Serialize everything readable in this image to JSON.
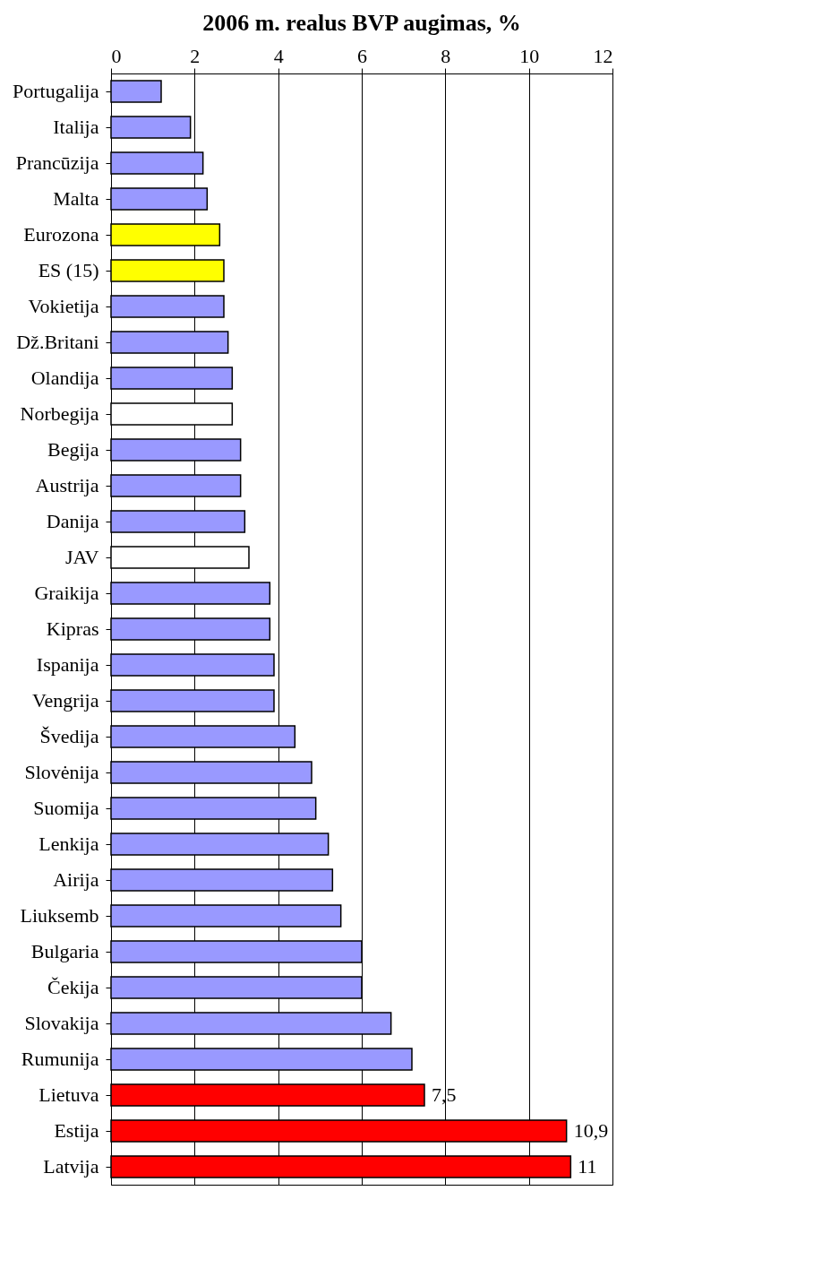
{
  "chart_data": {
    "type": "bar",
    "orientation": "horizontal",
    "title": "2006 m. realus BVP augimas, %",
    "categories": [
      "Portugalija",
      "Italija",
      "Prancūzija",
      "Malta",
      "Eurozona",
      "ES (15)",
      "Vokietija",
      "Dž.Britani",
      "Olandija",
      "Norbegija",
      "Begija",
      "Austrija",
      "Danija",
      "JAV",
      "Graikija",
      "Kipras",
      "Ispanija",
      "Vengrija",
      "Švedija",
      "Slovėnija",
      "Suomija",
      "Lenkija",
      "Airija",
      "Liuksemb",
      "Bulgaria",
      "Čekija",
      "Slovakija",
      "Rumunija",
      "Lietuva",
      "Estija",
      "Latvija"
    ],
    "values": [
      1.2,
      1.9,
      2.2,
      2.3,
      2.6,
      2.7,
      2.7,
      2.8,
      2.9,
      2.9,
      3.1,
      3.1,
      3.2,
      3.3,
      3.8,
      3.8,
      3.9,
      3.9,
      4.4,
      4.8,
      4.9,
      5.2,
      5.3,
      5.5,
      6.0,
      6.0,
      6.7,
      7.2,
      7.5,
      10.9,
      11.0
    ],
    "colors": [
      "#9999ff",
      "#9999ff",
      "#9999ff",
      "#9999ff",
      "#ffff00",
      "#ffff00",
      "#9999ff",
      "#9999ff",
      "#9999ff",
      "#ffffff",
      "#9999ff",
      "#9999ff",
      "#9999ff",
      "#ffffff",
      "#9999ff",
      "#9999ff",
      "#9999ff",
      "#9999ff",
      "#9999ff",
      "#9999ff",
      "#9999ff",
      "#9999ff",
      "#9999ff",
      "#9999ff",
      "#9999ff",
      "#9999ff",
      "#9999ff",
      "#9999ff",
      "#ff0000",
      "#ff0000",
      "#ff0000"
    ],
    "value_labels": [
      null,
      null,
      null,
      null,
      null,
      null,
      null,
      null,
      null,
      null,
      null,
      null,
      null,
      null,
      null,
      null,
      null,
      null,
      null,
      null,
      null,
      null,
      null,
      null,
      null,
      null,
      null,
      null,
      "7,5",
      "10,9",
      "11"
    ],
    "xlim": [
      0,
      12
    ],
    "xticks": [
      0,
      2,
      4,
      6,
      8,
      10,
      12
    ],
    "grid": "x"
  }
}
